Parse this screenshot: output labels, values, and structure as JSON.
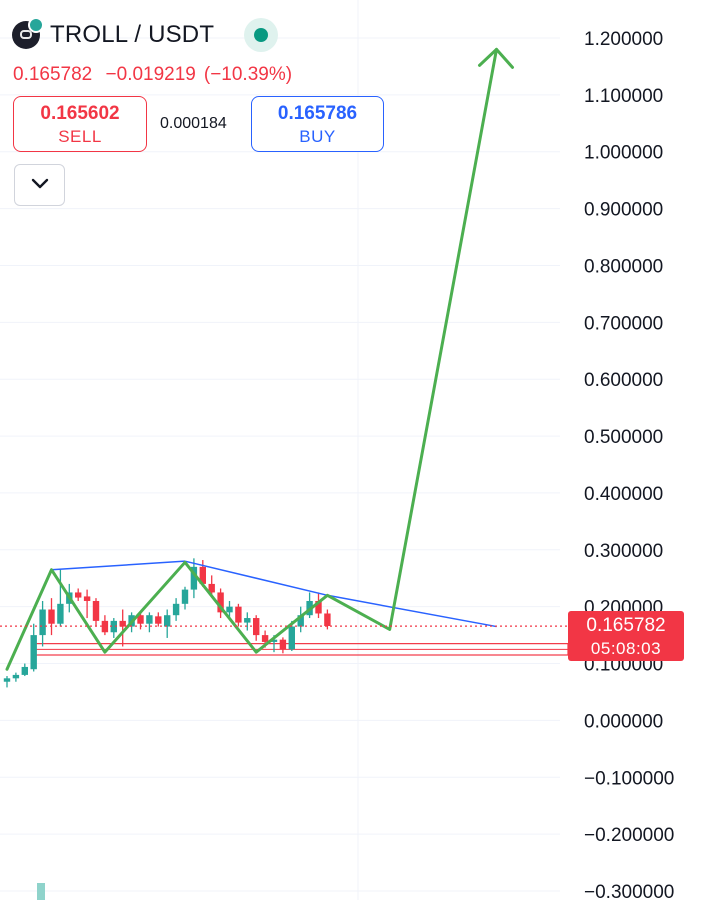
{
  "header": {
    "symbol": "TROLL / USDT",
    "last": "0.165782",
    "change": "−0.019219",
    "change_pct": "(−10.39%)"
  },
  "trade": {
    "sell_price": "0.165602",
    "sell_label": "SELL",
    "spread": "0.000184",
    "buy_price": "0.165786",
    "buy_label": "BUY"
  },
  "price_tag": {
    "price": "0.165782",
    "countdown": "05:08:03"
  },
  "colors": {
    "up": "#26a69a",
    "down": "#f23645",
    "pattern": "#4caf50",
    "trendline": "#2962ff",
    "grid": "#f0f3fa"
  },
  "icons": {
    "collapse": "chevron-down-icon",
    "logo": "troll-logo-icon",
    "status": "market-open-dot-icon"
  },
  "chart_data": {
    "type": "candlestick",
    "ylim": [
      -0.3,
      1.2
    ],
    "y_ticks": [
      "1.200000",
      "1.100000",
      "1.000000",
      "0.900000",
      "0.800000",
      "0.700000",
      "0.600000",
      "0.500000",
      "0.400000",
      "0.300000",
      "0.200000",
      "0.100000",
      "0.000000",
      "−0.100000",
      "−0.200000",
      "−0.300000"
    ],
    "y_tick_values": [
      1.2,
      1.1,
      1.0,
      0.9,
      0.8,
      0.7,
      0.6,
      0.5,
      0.4,
      0.3,
      0.2,
      0.1,
      0.0,
      -0.1,
      -0.2,
      -0.3
    ],
    "candles": [
      {
        "o": 0.068,
        "h": 0.078,
        "l": 0.058,
        "c": 0.074
      },
      {
        "o": 0.074,
        "h": 0.084,
        "l": 0.068,
        "c": 0.08
      },
      {
        "o": 0.08,
        "h": 0.1,
        "l": 0.078,
        "c": 0.094
      },
      {
        "o": 0.09,
        "h": 0.17,
        "l": 0.086,
        "c": 0.15
      },
      {
        "o": 0.15,
        "h": 0.21,
        "l": 0.13,
        "c": 0.195
      },
      {
        "o": 0.195,
        "h": 0.215,
        "l": 0.15,
        "c": 0.17
      },
      {
        "o": 0.17,
        "h": 0.265,
        "l": 0.165,
        "c": 0.205
      },
      {
        "o": 0.205,
        "h": 0.24,
        "l": 0.19,
        "c": 0.225
      },
      {
        "o": 0.225,
        "h": 0.232,
        "l": 0.21,
        "c": 0.216
      },
      {
        "o": 0.218,
        "h": 0.23,
        "l": 0.18,
        "c": 0.21
      },
      {
        "o": 0.21,
        "h": 0.215,
        "l": 0.165,
        "c": 0.175
      },
      {
        "o": 0.175,
        "h": 0.185,
        "l": 0.15,
        "c": 0.155
      },
      {
        "o": 0.155,
        "h": 0.18,
        "l": 0.145,
        "c": 0.175
      },
      {
        "o": 0.175,
        "h": 0.195,
        "l": 0.13,
        "c": 0.165
      },
      {
        "o": 0.165,
        "h": 0.19,
        "l": 0.155,
        "c": 0.185
      },
      {
        "o": 0.185,
        "h": 0.192,
        "l": 0.16,
        "c": 0.17
      },
      {
        "o": 0.17,
        "h": 0.19,
        "l": 0.155,
        "c": 0.185
      },
      {
        "o": 0.183,
        "h": 0.19,
        "l": 0.165,
        "c": 0.17
      },
      {
        "o": 0.165,
        "h": 0.195,
        "l": 0.145,
        "c": 0.185
      },
      {
        "o": 0.185,
        "h": 0.215,
        "l": 0.175,
        "c": 0.205
      },
      {
        "o": 0.205,
        "h": 0.235,
        "l": 0.195,
        "c": 0.23
      },
      {
        "o": 0.23,
        "h": 0.285,
        "l": 0.215,
        "c": 0.27
      },
      {
        "o": 0.27,
        "h": 0.282,
        "l": 0.235,
        "c": 0.24
      },
      {
        "o": 0.24,
        "h": 0.255,
        "l": 0.22,
        "c": 0.225
      },
      {
        "o": 0.225,
        "h": 0.232,
        "l": 0.18,
        "c": 0.19
      },
      {
        "o": 0.19,
        "h": 0.21,
        "l": 0.18,
        "c": 0.2
      },
      {
        "o": 0.2,
        "h": 0.205,
        "l": 0.165,
        "c": 0.172
      },
      {
        "o": 0.172,
        "h": 0.19,
        "l": 0.158,
        "c": 0.18
      },
      {
        "o": 0.18,
        "h": 0.185,
        "l": 0.14,
        "c": 0.15
      },
      {
        "o": 0.15,
        "h": 0.158,
        "l": 0.128,
        "c": 0.138
      },
      {
        "o": 0.138,
        "h": 0.15,
        "l": 0.12,
        "c": 0.142
      },
      {
        "o": 0.142,
        "h": 0.146,
        "l": 0.118,
        "c": 0.125
      },
      {
        "o": 0.125,
        "h": 0.175,
        "l": 0.122,
        "c": 0.165
      },
      {
        "o": 0.165,
        "h": 0.2,
        "l": 0.155,
        "c": 0.185
      },
      {
        "o": 0.185,
        "h": 0.225,
        "l": 0.18,
        "c": 0.21
      },
      {
        "o": 0.21,
        "h": 0.225,
        "l": 0.18,
        "c": 0.188
      },
      {
        "o": 0.188,
        "h": 0.195,
        "l": 0.16,
        "c": 0.166
      }
    ],
    "pattern_line": [
      [
        0,
        0.09
      ],
      [
        5,
        0.265
      ],
      [
        11,
        0.12
      ],
      [
        20,
        0.278
      ],
      [
        28,
        0.12
      ],
      [
        36,
        0.22
      ],
      [
        43,
        0.16
      ],
      [
        55,
        1.18
      ]
    ],
    "trend_lines": [
      [
        [
          5,
          0.265
        ],
        [
          20,
          0.28
        ]
      ],
      [
        [
          20,
          0.28
        ],
        [
          36,
          0.22
        ],
        [
          55,
          0.165
        ]
      ]
    ],
    "support_band": [
      0.115,
      0.135
    ],
    "last_price": 0.165782
  }
}
